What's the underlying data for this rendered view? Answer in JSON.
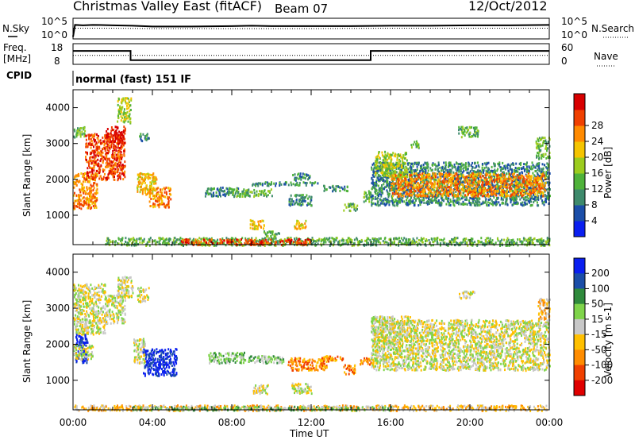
{
  "header": {
    "title": "Christmas Valley East (fitACF)",
    "beam": "Beam 07",
    "date": "12/Oct/2012"
  },
  "chart_data": [
    {
      "type": "line",
      "panel": "noise",
      "left_label": "N.Sky",
      "right_label": "N.Search",
      "left_ticks": [
        "10^5",
        "10^0"
      ],
      "right_ticks": [
        "10^5",
        "10^0"
      ],
      "yscale": "log",
      "series": [
        {
          "style": "solid",
          "x_hours": [
            0,
            0.1,
            0.5,
            1,
            2,
            3,
            4,
            6,
            8,
            9,
            10,
            12,
            14,
            16,
            18,
            20,
            22,
            24
          ],
          "y_log10": [
            0.5,
            3.4,
            3.3,
            3.4,
            3.3,
            3.2,
            3.0,
            3.0,
            3.1,
            3.2,
            3.1,
            3.1,
            3.1,
            3.2,
            3.2,
            3.3,
            3.3,
            3.4
          ]
        },
        {
          "style": "dotted",
          "x_hours": [
            0,
            2,
            4,
            8,
            12,
            16,
            20,
            24
          ],
          "y_log10": [
            2.6,
            2.6,
            2.5,
            2.5,
            2.5,
            2.6,
            2.6,
            2.6
          ]
        }
      ]
    },
    {
      "type": "line",
      "panel": "frequency",
      "left_label": "Freq.",
      "left_unit": "[MHz]",
      "right_label": "Nave",
      "left_ticks": [
        "18",
        "8"
      ],
      "right_ticks": [
        "60",
        "0"
      ],
      "series": [
        {
          "name": "Freq.",
          "style": "solid",
          "x_hours": [
            0,
            2.9,
            2.9,
            15,
            15,
            24
          ],
          "y": [
            14.5,
            14.5,
            10,
            10,
            14.5,
            14.5
          ]
        },
        {
          "name": "Nave",
          "style": "dotted",
          "x_hours": [
            0,
            24
          ],
          "y_right": [
            26,
            26
          ]
        }
      ]
    },
    {
      "type": "text",
      "panel": "cpid",
      "label": "CPID",
      "value": "normal (fast) 151 IF"
    },
    {
      "type": "heatmap",
      "panel": "power",
      "ylabel": "Slant Range [km]",
      "xlabel": "Time UT",
      "x_ticks": [
        "00:00",
        "04:00",
        "08:00",
        "12:00",
        "16:00",
        "20:00",
        "00:00"
      ],
      "x_range_hours": [
        0,
        24
      ],
      "y_ticks": [
        1000,
        2000,
        3000,
        4000
      ],
      "y_range_km": [
        180,
        4500
      ],
      "colorbar": {
        "label": "Power [dB]",
        "ticks": [
          "4",
          "8",
          "12",
          "16",
          "20",
          "24",
          "28"
        ],
        "colors": [
          "#0a1ff0",
          "#1b4ea8",
          "#3e8a6c",
          "#4fb23a",
          "#9ccc1e",
          "#f5c400",
          "#ff8a00",
          "#f04000",
          "#d80000"
        ]
      },
      "regions": [
        {
          "t": [
            0,
            0.6
          ],
          "r": [
            3200,
            3500
          ],
          "level": 3
        },
        {
          "t": [
            0,
            1.2
          ],
          "r": [
            1200,
            2200
          ],
          "level": 6
        },
        {
          "t": [
            0.6,
            2.6
          ],
          "r": [
            2000,
            3300
          ],
          "level": 7
        },
        {
          "t": [
            1.6,
            2.6
          ],
          "r": [
            3000,
            3500
          ],
          "level": 8
        },
        {
          "t": [
            2.2,
            2.9
          ],
          "r": [
            3600,
            4300
          ],
          "level": 4
        },
        {
          "t": [
            3.2,
            4.2
          ],
          "r": [
            1600,
            2200
          ],
          "level": 5
        },
        {
          "t": [
            3.8,
            4.9
          ],
          "r": [
            1250,
            1800
          ],
          "level": 6
        },
        {
          "t": [
            3.3,
            3.8
          ],
          "r": [
            3100,
            3300
          ],
          "level": 2
        },
        {
          "t": [
            6.6,
            8.4
          ],
          "r": [
            1550,
            1800
          ],
          "level": 2
        },
        {
          "t": [
            8.0,
            10.0
          ],
          "r": [
            1550,
            1750
          ],
          "level": 3
        },
        {
          "t": [
            9.0,
            12.3
          ],
          "r": [
            1850,
            1950
          ],
          "level": 2
        },
        {
          "t": [
            10.8,
            12.0
          ],
          "r": [
            1300,
            1600
          ],
          "level": 2
        },
        {
          "t": [
            11.0,
            11.9
          ],
          "r": [
            2000,
            2200
          ],
          "level": 2
        },
        {
          "t": [
            12.6,
            13.8
          ],
          "r": [
            1700,
            1850
          ],
          "level": 2
        },
        {
          "t": [
            13.6,
            14.3
          ],
          "r": [
            1150,
            1350
          ],
          "level": 3
        },
        {
          "t": [
            14.6,
            15.1
          ],
          "r": [
            1400,
            1700
          ],
          "level": 3
        },
        {
          "t": [
            8.9,
            9.6
          ],
          "r": [
            600,
            900
          ],
          "level": 5
        },
        {
          "t": [
            11.1,
            11.7
          ],
          "r": [
            650,
            900
          ],
          "level": 5
        },
        {
          "t": [
            9.6,
            10.4
          ],
          "r": [
            420,
            580
          ],
          "level": 3
        },
        {
          "t": [
            15.0,
            24.0
          ],
          "r": [
            1300,
            2500
          ],
          "level": 2
        },
        {
          "t": [
            16.0,
            23.8
          ],
          "r": [
            1550,
            2200
          ],
          "level": 6
        },
        {
          "t": [
            15.2,
            16.8
          ],
          "r": [
            2100,
            2800
          ],
          "level": 4
        },
        {
          "t": [
            17.0,
            17.4
          ],
          "r": [
            2900,
            3100
          ],
          "level": 3
        },
        {
          "t": [
            19.4,
            20.4
          ],
          "r": [
            3200,
            3500
          ],
          "level": 3
        },
        {
          "t": [
            23.3,
            24.0
          ],
          "r": [
            2600,
            3200
          ],
          "level": 3
        },
        {
          "t": [
            1.6,
            24.0
          ],
          "r": [
            180,
            400
          ],
          "level": 3
        },
        {
          "t": [
            5.4,
            12.0
          ],
          "r": [
            200,
            360
          ],
          "level": 7
        }
      ]
    },
    {
      "type": "heatmap",
      "panel": "velocity",
      "ylabel": "Slant Range [km]",
      "xlabel": "Time UT",
      "x_ticks": [
        "00:00",
        "04:00",
        "08:00",
        "12:00",
        "16:00",
        "20:00",
        "00:00"
      ],
      "x_range_hours": [
        0,
        24
      ],
      "y_ticks": [
        1000,
        2000,
        3000,
        4000
      ],
      "y_range_km": [
        180,
        4500
      ],
      "colorbar": {
        "label": "Velocity [m s-1]",
        "ticks": [
          "200",
          "100",
          "50",
          "15",
          "-15",
          "-50",
          "-100",
          "-200"
        ],
        "colors": [
          "#0a1ff0",
          "#1b4ea8",
          "#2f8a3c",
          "#7fd44a",
          "#c8c8c8",
          "#ffc000",
          "#ff8c00",
          "#f04000",
          "#e00000"
        ]
      },
      "regions": [
        {
          "t": [
            0,
            1.6
          ],
          "r": [
            2300,
            3700
          ],
          "level": 4
        },
        {
          "t": [
            0.1,
            0.7
          ],
          "r": [
            1500,
            2300
          ],
          "level": 0
        },
        {
          "t": [
            0,
            1.0
          ],
          "r": [
            1600,
            2000
          ],
          "level": 4
        },
        {
          "t": [
            1.6,
            2.6
          ],
          "r": [
            2600,
            3400
          ],
          "level": 4
        },
        {
          "t": [
            3.0,
            3.6
          ],
          "r": [
            1500,
            2200
          ],
          "level": 4
        },
        {
          "t": [
            3.5,
            5.2
          ],
          "r": [
            1150,
            1900
          ],
          "level": 0
        },
        {
          "t": [
            2.2,
            3.0
          ],
          "r": [
            3300,
            3900
          ],
          "level": 4
        },
        {
          "t": [
            3.2,
            3.8
          ],
          "r": [
            3200,
            3600
          ],
          "level": 4
        },
        {
          "t": [
            6.8,
            8.6
          ],
          "r": [
            1500,
            1800
          ],
          "level": 3
        },
        {
          "t": [
            8.6,
            10.6
          ],
          "r": [
            1500,
            1700
          ],
          "level": 3
        },
        {
          "t": [
            10.8,
            12.8
          ],
          "r": [
            1300,
            1650
          ],
          "level": 6
        },
        {
          "t": [
            12.4,
            13.6
          ],
          "r": [
            1550,
            1700
          ],
          "level": 6
        },
        {
          "t": [
            13.6,
            14.2
          ],
          "r": [
            1200,
            1450
          ],
          "level": 6
        },
        {
          "t": [
            14.4,
            15.0
          ],
          "r": [
            1450,
            1650
          ],
          "level": 6
        },
        {
          "t": [
            9.0,
            9.8
          ],
          "r": [
            650,
            900
          ],
          "level": 4
        },
        {
          "t": [
            11.0,
            12.0
          ],
          "r": [
            650,
            950
          ],
          "level": 4
        },
        {
          "t": [
            15.0,
            24.0
          ],
          "r": [
            1300,
            2700
          ],
          "level": 4
        },
        {
          "t": [
            15.0,
            17.0
          ],
          "r": [
            2100,
            2800
          ],
          "level": 4
        },
        {
          "t": [
            19.4,
            20.2
          ],
          "r": [
            3300,
            3500
          ],
          "level": 4
        },
        {
          "t": [
            23.4,
            24.0
          ],
          "r": [
            2700,
            3300
          ],
          "level": 5
        },
        {
          "t": [
            0,
            24.0
          ],
          "r": [
            180,
            330
          ],
          "level": 5
        },
        {
          "t": [
            3.0,
            16.0
          ],
          "r": [
            190,
            300
          ],
          "level": 3
        }
      ]
    }
  ]
}
